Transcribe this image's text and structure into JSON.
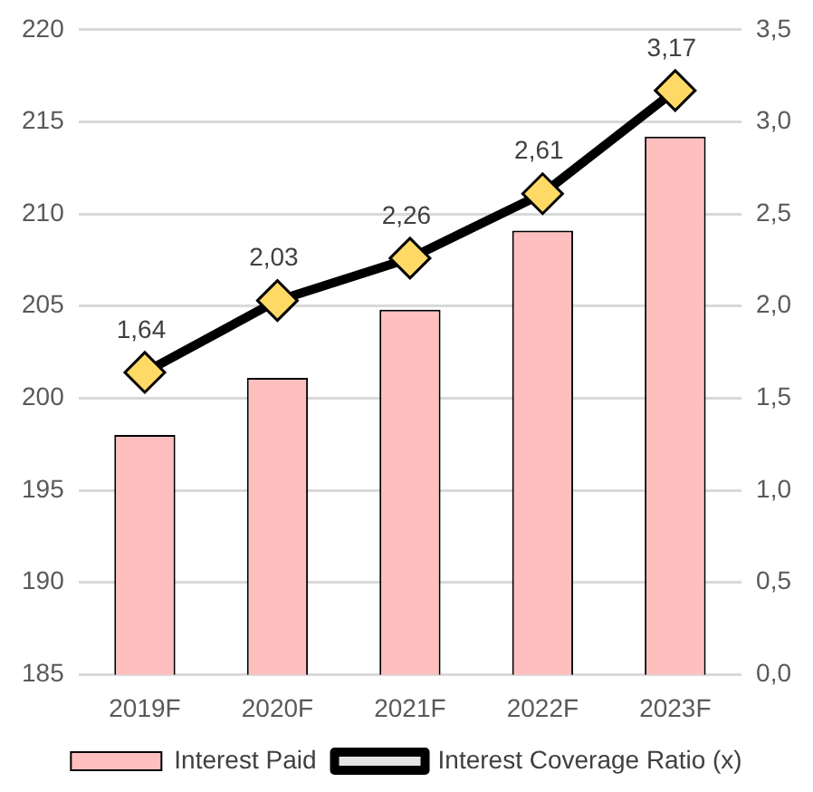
{
  "chart_data": {
    "type": "bar",
    "categories": [
      "2019F",
      "2020F",
      "2021F",
      "2022F",
      "2023F"
    ],
    "series": [
      {
        "name": "Interest Paid",
        "color": "#ffbfbf",
        "values": [
          198.0,
          201.1,
          204.8,
          209.1,
          214.2
        ]
      },
      {
        "name": "Interest Coverage Ratio (x)",
        "type": "line",
        "axis": "y2",
        "color": "#000000",
        "marker": "diamond",
        "values": [
          1.64,
          2.03,
          2.26,
          2.61,
          3.17
        ],
        "value_labels": [
          "1,64",
          "2,03",
          "2,26",
          "2,61",
          "3,17"
        ]
      }
    ],
    "ylim": [
      185,
      220
    ],
    "yticks": [
      185,
      190,
      195,
      200,
      205,
      210,
      215,
      220
    ],
    "y2lim": [
      0,
      3.5
    ],
    "y2ticks": [
      {
        "value": 0,
        "label": "0,0"
      },
      {
        "value": 0.5,
        "label": "0,5"
      },
      {
        "value": 1,
        "label": "1,0"
      },
      {
        "value": 1.5,
        "label": "1,5"
      },
      {
        "value": 2,
        "label": "2,0"
      },
      {
        "value": 2.5,
        "label": "2,5"
      },
      {
        "value": 3,
        "label": "3,0"
      },
      {
        "value": 3.5,
        "label": "3,5"
      }
    ],
    "grid": "y",
    "legend": "bottom"
  }
}
